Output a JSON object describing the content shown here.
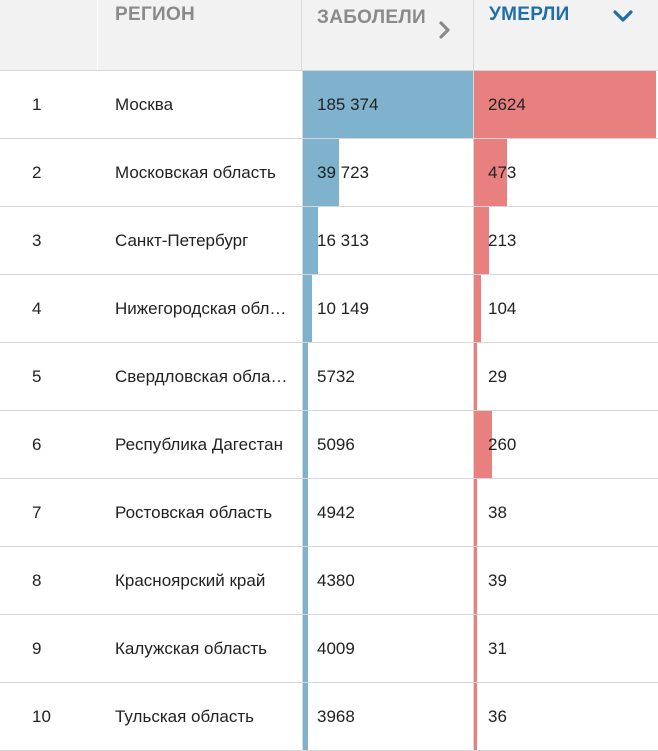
{
  "header": {
    "region": "РЕГИОН",
    "cases": "ЗАБОЛЕЛИ",
    "deaths": "УМЕРЛИ"
  },
  "colors": {
    "cases_bar": "#7fb3cd",
    "deaths_bar": "#e88080",
    "active_header": "#1f6fa8"
  },
  "icons": {
    "cases_sort": "chevron-right-icon",
    "deaths_sort": "chevron-down-icon"
  },
  "rows": [
    {
      "num": "1",
      "region": "Москва",
      "cases": "185 374",
      "deaths": "2624",
      "cases_value": 185374,
      "deaths_value": 2624
    },
    {
      "num": "2",
      "region": "Московская область",
      "cases": "39 723",
      "deaths": "473",
      "cases_value": 39723,
      "deaths_value": 473
    },
    {
      "num": "3",
      "region": "Санкт-Петербург",
      "cases": "16 313",
      "deaths": "213",
      "cases_value": 16313,
      "deaths_value": 213
    },
    {
      "num": "4",
      "region": "Нижегородская область",
      "cases": "10 149",
      "deaths": "104",
      "cases_value": 10149,
      "deaths_value": 104
    },
    {
      "num": "5",
      "region": "Свердловская область",
      "cases": "5732",
      "deaths": "29",
      "cases_value": 5732,
      "deaths_value": 29
    },
    {
      "num": "6",
      "region": "Республика Дагестан",
      "cases": "5096",
      "deaths": "260",
      "cases_value": 5096,
      "deaths_value": 260
    },
    {
      "num": "7",
      "region": "Ростовская область",
      "cases": "4942",
      "deaths": "38",
      "cases_value": 4942,
      "deaths_value": 38
    },
    {
      "num": "8",
      "region": "Красноярский край",
      "cases": "4380",
      "deaths": "39",
      "cases_value": 4380,
      "deaths_value": 39
    },
    {
      "num": "9",
      "region": "Калужская область",
      "cases": "4009",
      "deaths": "31",
      "cases_value": 4009,
      "deaths_value": 31
    },
    {
      "num": "10",
      "region": "Тульская область",
      "cases": "3968",
      "deaths": "36",
      "cases_value": 3968,
      "deaths_value": 36
    }
  ]
}
